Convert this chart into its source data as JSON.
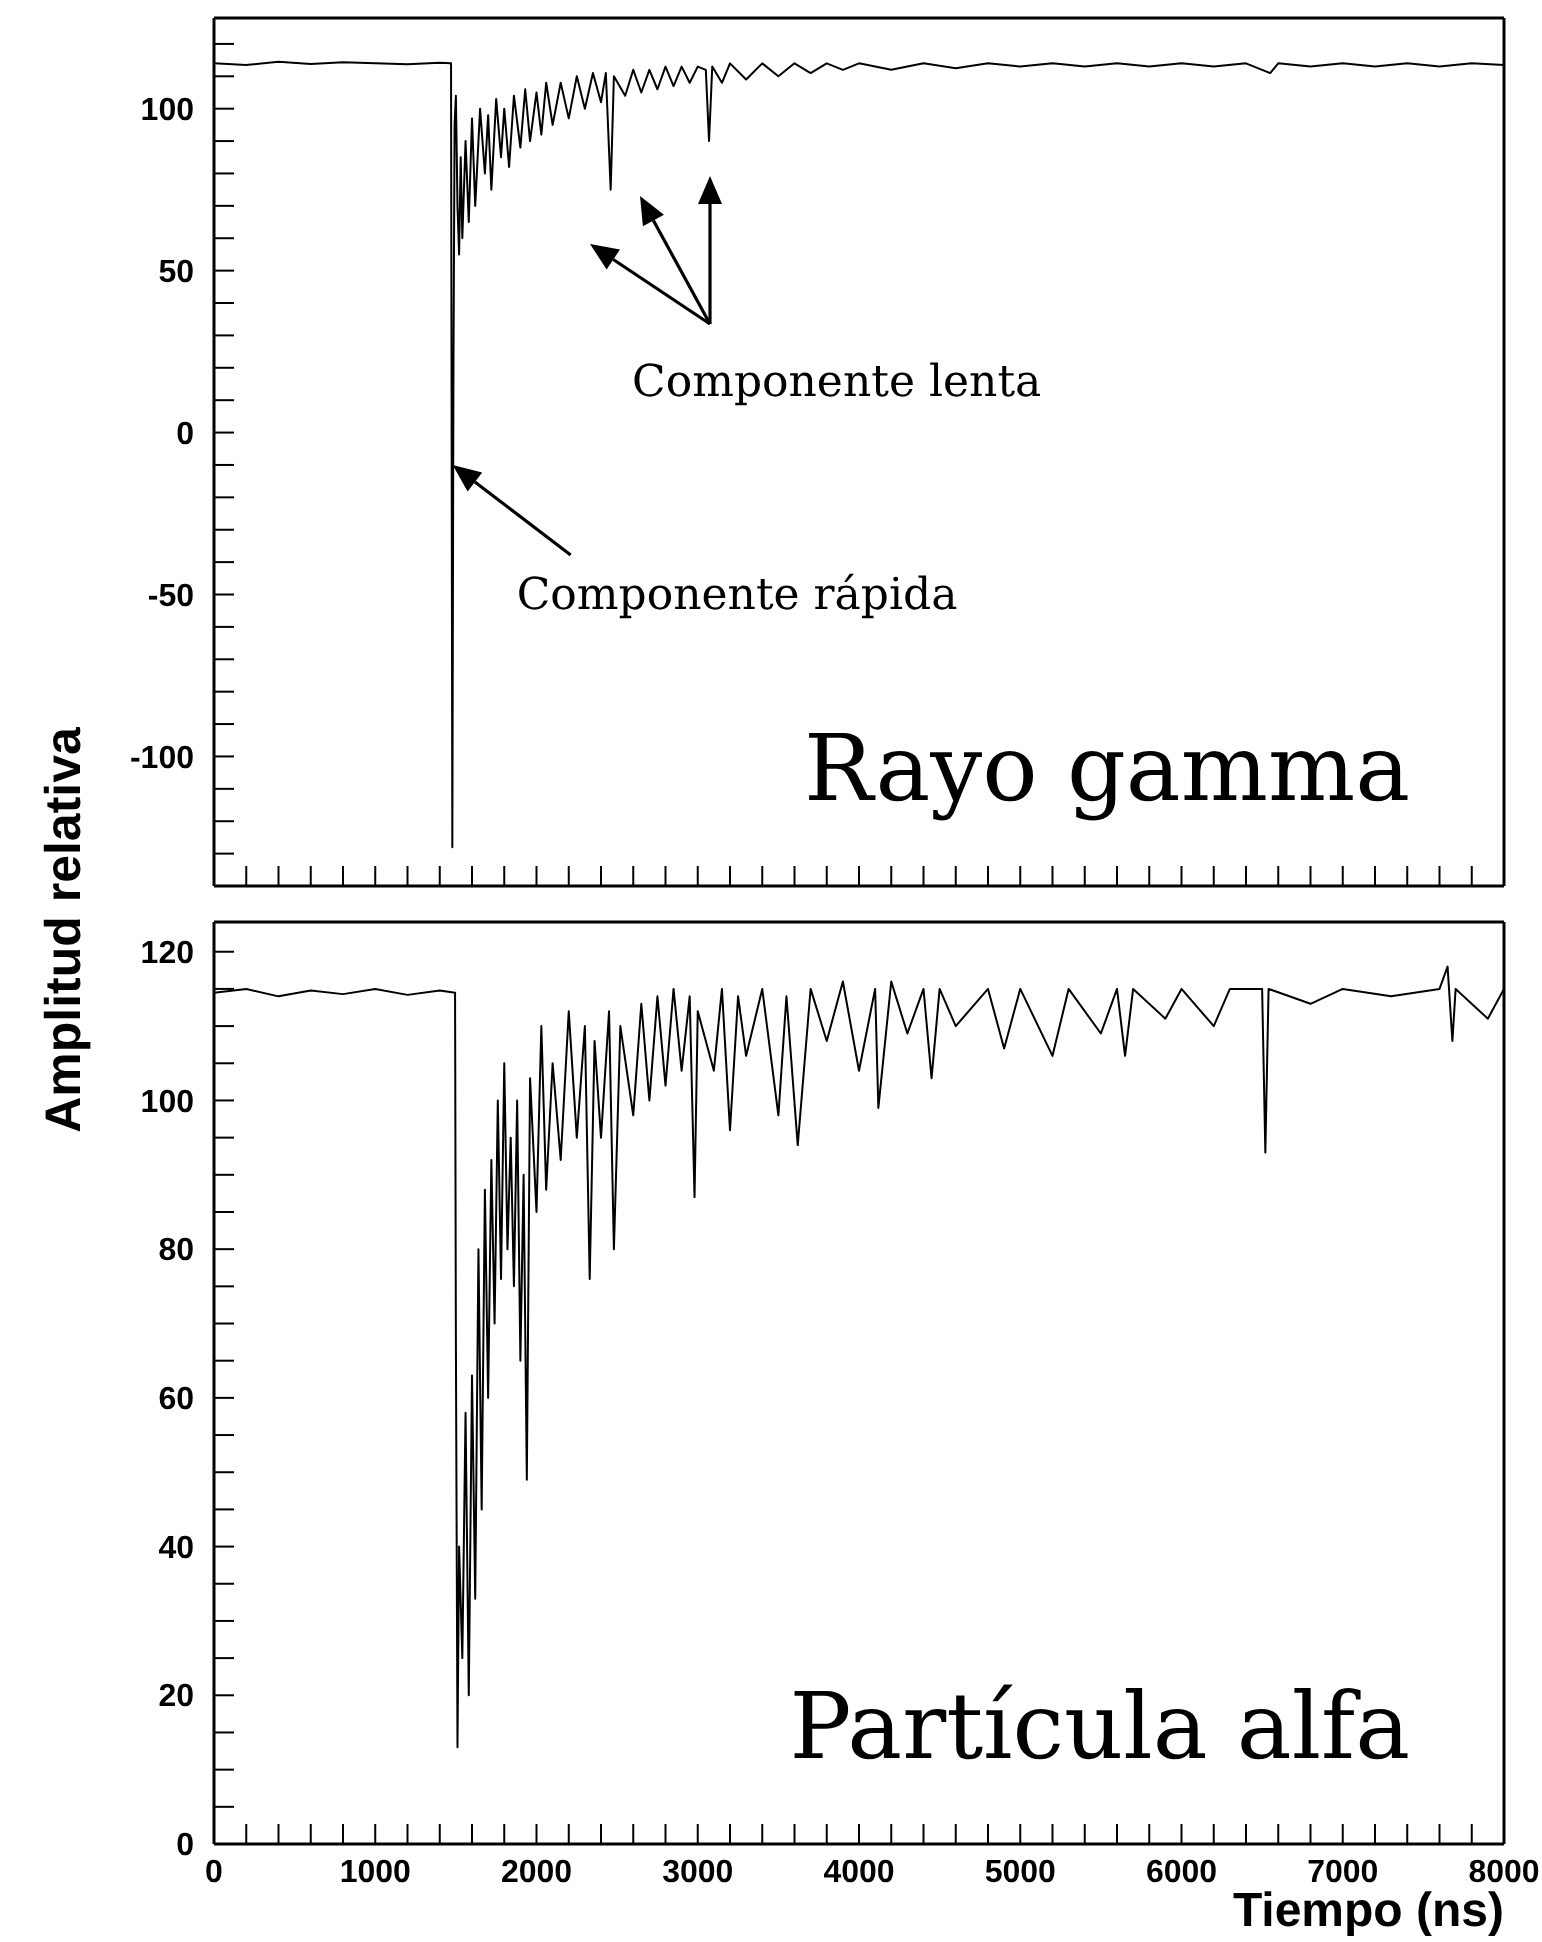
{
  "chart_data": [
    {
      "type": "line",
      "ylabel": "Amplitud relativa",
      "xlim": [
        0,
        8000
      ],
      "ylim": [
        -140,
        128
      ],
      "tick_labels": "y",
      "grid": false,
      "legend": false,
      "marker": "none",
      "line_style": "solid",
      "xticks": [
        0,
        {
          "value": 200,
          "label": null
        },
        {
          "value": 400,
          "label": null
        },
        {
          "value": 600,
          "label": null
        },
        {
          "value": 800,
          "label": null
        },
        1000,
        {
          "value": 1200,
          "label": null
        },
        {
          "value": 1400,
          "label": null
        },
        {
          "value": 1600,
          "label": null
        },
        {
          "value": 1800,
          "label": null
        },
        2000,
        {
          "value": 2200,
          "label": null
        },
        {
          "value": 2400,
          "label": null
        },
        {
          "value": 2600,
          "label": null
        },
        {
          "value": 2800,
          "label": null
        },
        3000,
        {
          "value": 3200,
          "label": null
        },
        {
          "value": 3400,
          "label": null
        },
        {
          "value": 3600,
          "label": null
        },
        {
          "value": 3800,
          "label": null
        },
        4000,
        {
          "value": 4200,
          "label": null
        },
        {
          "value": 4400,
          "label": null
        },
        {
          "value": 4600,
          "label": null
        },
        {
          "value": 4800,
          "label": null
        },
        5000,
        {
          "value": 5200,
          "label": null
        },
        {
          "value": 5400,
          "label": null
        },
        {
          "value": 5600,
          "label": null
        },
        {
          "value": 5800,
          "label": null
        },
        6000,
        {
          "value": 6200,
          "label": null
        },
        {
          "value": 6400,
          "label": null
        },
        {
          "value": 6600,
          "label": null
        },
        {
          "value": 6800,
          "label": null
        },
        7000,
        {
          "value": 7200,
          "label": null
        },
        {
          "value": 7400,
          "label": null
        },
        {
          "value": 7600,
          "label": null
        },
        {
          "value": 7800,
          "label": null
        },
        8000
      ],
      "yticks": [
        {
          "value": -140,
          "label": null
        },
        {
          "value": -130,
          "label": null
        },
        {
          "value": -120,
          "label": null
        },
        {
          "value": -110,
          "label": null
        },
        -100,
        {
          "value": -90,
          "label": null
        },
        {
          "value": -80,
          "label": null
        },
        {
          "value": -70,
          "label": null
        },
        {
          "value": -60,
          "label": null
        },
        -50,
        {
          "value": -40,
          "label": null
        },
        {
          "value": -30,
          "label": null
        },
        {
          "value": -20,
          "label": null
        },
        {
          "value": -10,
          "label": null
        },
        0,
        {
          "value": 10,
          "label": null
        },
        {
          "value": 20,
          "label": null
        },
        {
          "value": 30,
          "label": null
        },
        {
          "value": 40,
          "label": null
        },
        50,
        {
          "value": 60,
          "label": null
        },
        {
          "value": 70,
          "label": null
        },
        {
          "value": 80,
          "label": null
        },
        {
          "value": 90,
          "label": null
        },
        100,
        {
          "value": 110,
          "label": null
        },
        {
          "value": 120,
          "label": null
        }
      ],
      "annotations": [
        {
          "text": "Componente rápida",
          "x": 1480,
          "y": -10
        },
        "Componente lenta",
        "Rayo gamma"
      ],
      "series": [
        {
          "type": "line",
          "color": "#000000",
          "x": [
            0,
            200,
            400,
            600,
            800,
            1000,
            1200,
            1400,
            1470,
            1478,
            1485,
            1492,
            1500,
            1510,
            1520,
            1530,
            1540,
            1560,
            1580,
            1600,
            1620,
            1650,
            1680,
            1700,
            1720,
            1750,
            1780,
            1800,
            1830,
            1860,
            1900,
            1930,
            1960,
            2000,
            2030,
            2060,
            2100,
            2150,
            2200,
            2250,
            2300,
            2350,
            2400,
            2430,
            2460,
            2480,
            2550,
            2600,
            2650,
            2700,
            2750,
            2800,
            2850,
            2900,
            2950,
            3000,
            3050,
            3070,
            3090,
            3150,
            3200,
            3300,
            3400,
            3500,
            3600,
            3700,
            3800,
            3900,
            4000,
            4200,
            4400,
            4600,
            4800,
            5000,
            5200,
            5400,
            5600,
            5800,
            6000,
            6200,
            6400,
            6550,
            6600,
            6800,
            7000,
            7200,
            7400,
            7600,
            7800,
            8000
          ],
          "values": [
            114,
            113.5,
            114.5,
            113.8,
            114.3,
            114,
            113.7,
            114.2,
            114,
            -128,
            20,
            95,
            104,
            70,
            55,
            85,
            60,
            90,
            65,
            97,
            70,
            100,
            80,
            98,
            75,
            103,
            85,
            100,
            82,
            104,
            88,
            106,
            90,
            105,
            92,
            108,
            95,
            108,
            97,
            110,
            100,
            111,
            102,
            111,
            75,
            110,
            104,
            112,
            105,
            112,
            106,
            113,
            107,
            113,
            108,
            113,
            112,
            90,
            113,
            108,
            114,
            109,
            114,
            110,
            114,
            111,
            114,
            112,
            114,
            112,
            114,
            112.5,
            114,
            113,
            114,
            113,
            114,
            113,
            114,
            113,
            114,
            111,
            114,
            113,
            114,
            113,
            114,
            113,
            114,
            113.5
          ]
        }
      ]
    },
    {
      "type": "line",
      "xlabel": "Tiempo (ns)",
      "xlim": [
        0,
        8000
      ],
      "ylim": [
        0,
        124
      ],
      "grid": false,
      "legend": false,
      "marker": "none",
      "line_style": "solid",
      "xticks": [
        0,
        {
          "value": 200,
          "label": null
        },
        {
          "value": 400,
          "label": null
        },
        {
          "value": 600,
          "label": null
        },
        {
          "value": 800,
          "label": null
        },
        1000,
        {
          "value": 1200,
          "label": null
        },
        {
          "value": 1400,
          "label": null
        },
        {
          "value": 1600,
          "label": null
        },
        {
          "value": 1800,
          "label": null
        },
        2000,
        {
          "value": 2200,
          "label": null
        },
        {
          "value": 2400,
          "label": null
        },
        {
          "value": 2600,
          "label": null
        },
        {
          "value": 2800,
          "label": null
        },
        3000,
        {
          "value": 3200,
          "label": null
        },
        {
          "value": 3400,
          "label": null
        },
        {
          "value": 3600,
          "label": null
        },
        {
          "value": 3800,
          "label": null
        },
        4000,
        {
          "value": 4200,
          "label": null
        },
        {
          "value": 4400,
          "label": null
        },
        {
          "value": 4600,
          "label": null
        },
        {
          "value": 4800,
          "label": null
        },
        5000,
        {
          "value": 5200,
          "label": null
        },
        {
          "value": 5400,
          "label": null
        },
        {
          "value": 5600,
          "label": null
        },
        {
          "value": 5800,
          "label": null
        },
        6000,
        {
          "value": 6200,
          "label": null
        },
        {
          "value": 6400,
          "label": null
        },
        {
          "value": 6600,
          "label": null
        },
        {
          "value": 6800,
          "label": null
        },
        7000,
        {
          "value": 7200,
          "label": null
        },
        {
          "value": 7400,
          "label": null
        },
        {
          "value": 7600,
          "label": null
        },
        {
          "value": 7800,
          "label": null
        },
        8000
      ],
      "yticks": [
        0,
        {
          "value": 5,
          "label": null
        },
        {
          "value": 10,
          "label": null
        },
        {
          "value": 15,
          "label": null
        },
        20,
        {
          "value": 25,
          "label": null
        },
        {
          "value": 30,
          "label": null
        },
        {
          "value": 35,
          "label": null
        },
        40,
        {
          "value": 45,
          "label": null
        },
        {
          "value": 50,
          "label": null
        },
        {
          "value": 55,
          "label": null
        },
        60,
        {
          "value": 65,
          "label": null
        },
        {
          "value": 70,
          "label": null
        },
        {
          "value": 75,
          "label": null
        },
        80,
        {
          "value": 85,
          "label": null
        },
        {
          "value": 90,
          "label": null
        },
        {
          "value": 95,
          "label": null
        },
        100,
        {
          "value": 105,
          "label": null
        },
        {
          "value": 110,
          "label": null
        },
        {
          "value": 115,
          "label": null
        },
        120
      ],
      "annotations": [
        "Partícula alfa"
      ],
      "series": [
        {
          "type": "line",
          "color": "#000000",
          "x": [
            0,
            200,
            400,
            600,
            800,
            1000,
            1200,
            1400,
            1495,
            1500,
            1510,
            1520,
            1540,
            1560,
            1580,
            1600,
            1620,
            1640,
            1660,
            1680,
            1700,
            1720,
            1740,
            1760,
            1780,
            1800,
            1820,
            1840,
            1860,
            1880,
            1900,
            1920,
            1940,
            1960,
            2000,
            2030,
            2060,
            2100,
            2150,
            2200,
            2250,
            2300,
            2330,
            2360,
            2400,
            2450,
            2480,
            2520,
            2600,
            2650,
            2700,
            2750,
            2800,
            2850,
            2900,
            2950,
            2980,
            3000,
            3100,
            3150,
            3200,
            3250,
            3300,
            3400,
            3500,
            3550,
            3620,
            3700,
            3800,
            3900,
            4000,
            4100,
            4120,
            4200,
            4300,
            4400,
            4450,
            4500,
            4600,
            4800,
            4900,
            5000,
            5200,
            5300,
            5500,
            5600,
            5650,
            5700,
            5900,
            6000,
            6200,
            6300,
            6500,
            6520,
            6540,
            6800,
            7000,
            7300,
            7600,
            7650,
            7680,
            7700,
            7900,
            8000
          ],
          "values": [
            114.5,
            115,
            114,
            114.8,
            114.3,
            115,
            114.2,
            114.8,
            114.5,
            68,
            13,
            40,
            25,
            58,
            20,
            63,
            33,
            80,
            45,
            88,
            60,
            92,
            70,
            100,
            76,
            105,
            80,
            95,
            75,
            100,
            65,
            90,
            49,
            103,
            85,
            110,
            88,
            105,
            92,
            112,
            95,
            110,
            76,
            108,
            95,
            112,
            80,
            110,
            98,
            113,
            100,
            114,
            102,
            115,
            104,
            114,
            87,
            112,
            104,
            115,
            96,
            114,
            106,
            115,
            98,
            114,
            94,
            115,
            108,
            116,
            104,
            115,
            99,
            116,
            109,
            115,
            103,
            115,
            110,
            115,
            107,
            115,
            106,
            115,
            109,
            115,
            106,
            115,
            111,
            115,
            110,
            115,
            115,
            93,
            115,
            113,
            115,
            114,
            115,
            118,
            108,
            115,
            111,
            115
          ]
        }
      ]
    }
  ]
}
